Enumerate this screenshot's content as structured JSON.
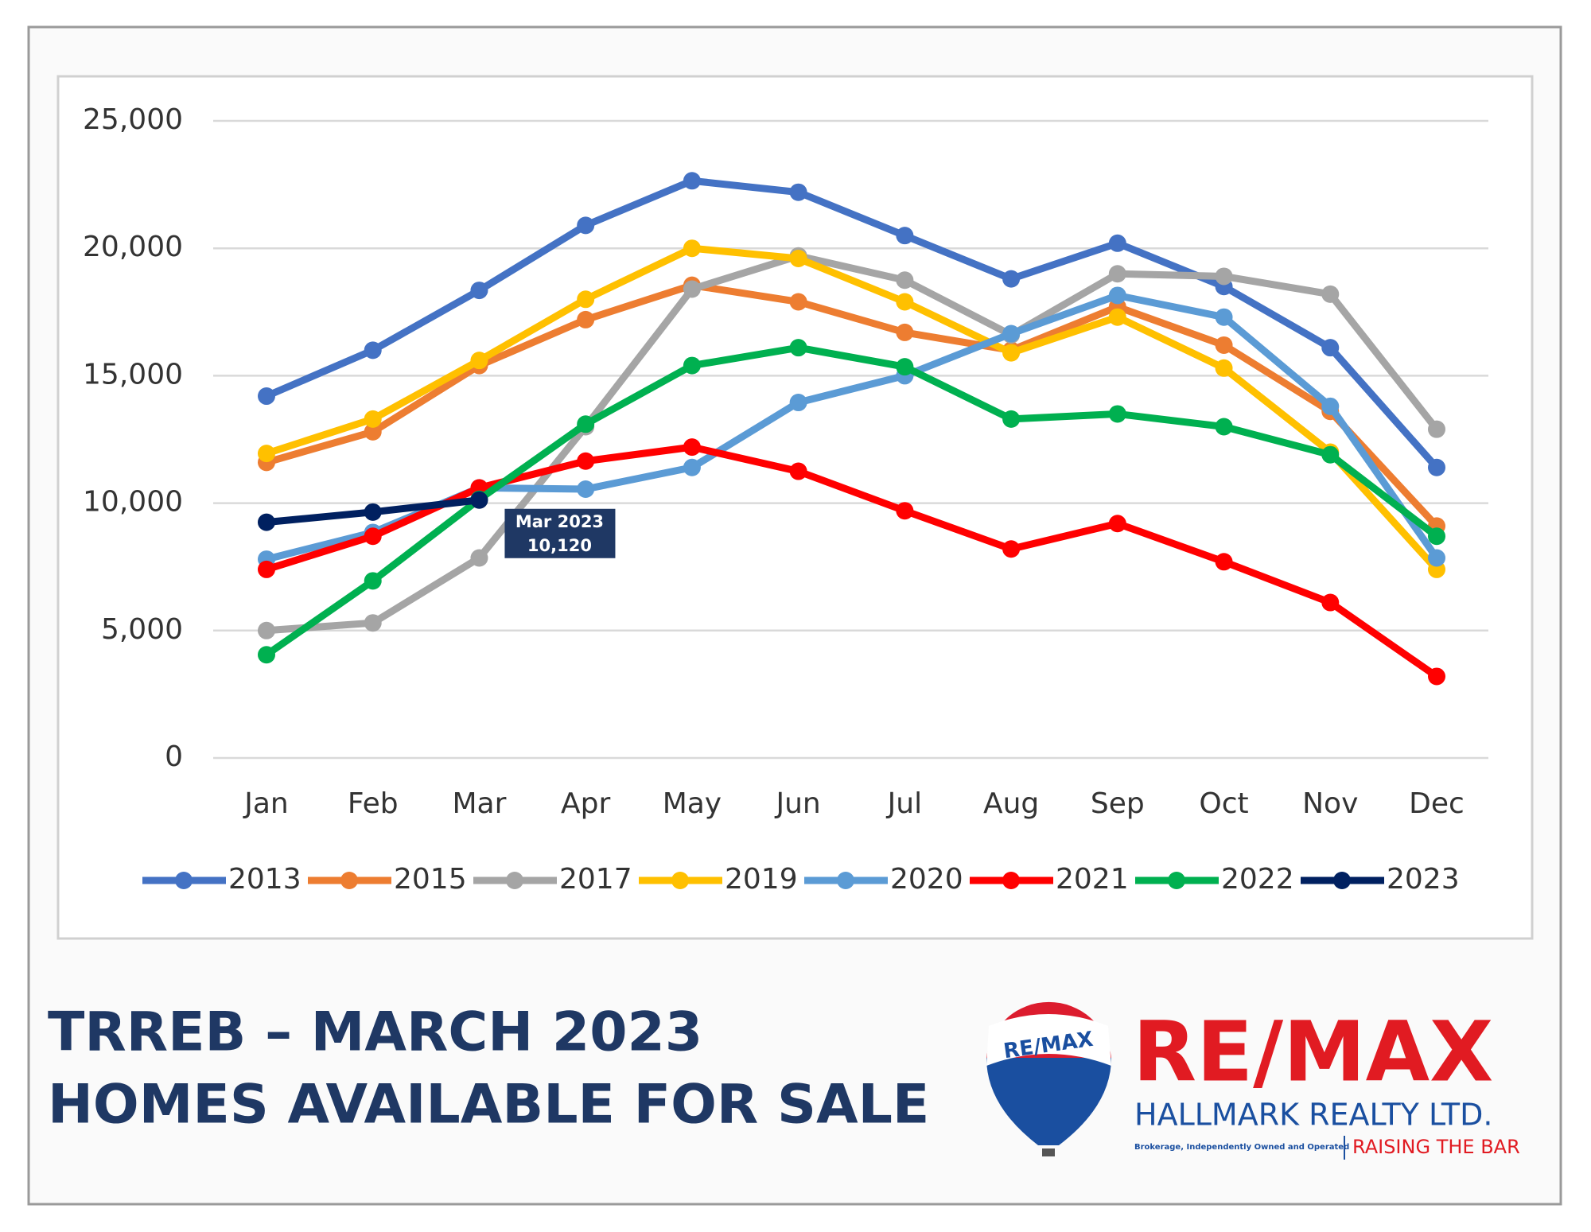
{
  "chart_data": {
    "type": "line",
    "categories": [
      "Jan",
      "Feb",
      "Mar",
      "Apr",
      "May",
      "Jun",
      "Jul",
      "Aug",
      "Sep",
      "Oct",
      "Nov",
      "Dec"
    ],
    "series": [
      {
        "name": "2013",
        "color": "#4472c4",
        "values": [
          14200,
          16000,
          18350,
          20900,
          22650,
          22200,
          20500,
          18800,
          20200,
          18500,
          16100,
          11400
        ]
      },
      {
        "name": "2015",
        "color": "#ed7d31",
        "values": [
          11600,
          12800,
          15400,
          17200,
          18550,
          17900,
          16700,
          16000,
          17700,
          16200,
          13600,
          9100
        ]
      },
      {
        "name": "2017",
        "color": "#a5a5a5",
        "values": [
          5000,
          5300,
          7850,
          13000,
          18400,
          19700,
          18750,
          16600,
          19000,
          18900,
          18200,
          12900
        ]
      },
      {
        "name": "2019",
        "color": "#ffc000",
        "values": [
          11950,
          13300,
          15600,
          18000,
          20000,
          19600,
          17900,
          15900,
          17300,
          15300,
          12000,
          7400
        ]
      },
      {
        "name": "2020",
        "color": "#5b9bd5",
        "values": [
          7800,
          8850,
          10600,
          10550,
          11400,
          13950,
          15000,
          16650,
          18150,
          17300,
          13800,
          7850
        ]
      },
      {
        "name": "2021",
        "color": "#ff0000",
        "values": [
          7400,
          8700,
          10600,
          11650,
          12200,
          11250,
          9700,
          8200,
          9200,
          7700,
          6100,
          3200
        ]
      },
      {
        "name": "2022",
        "color": "#00b050",
        "values": [
          4050,
          6950,
          10150,
          13100,
          15400,
          16100,
          15350,
          13300,
          13500,
          13000,
          11900,
          8700
        ]
      },
      {
        "name": "2023",
        "color": "#002060",
        "values": [
          9250,
          9650,
          10120,
          null,
          null,
          null,
          null,
          null,
          null,
          null,
          null,
          null
        ],
        "value_labels": [
          null,
          null,
          "10,120",
          null,
          null,
          null,
          null,
          null,
          null,
          null,
          null,
          null
        ]
      }
    ],
    "annotation": "Mar 2023",
    "ylim": [
      0,
      25000
    ],
    "yticks": [
      0,
      {
        "value": 5000,
        "label": "5,000"
      },
      {
        "value": 10000,
        "label": "10,000"
      },
      {
        "value": 15000,
        "label": "15,000"
      },
      {
        "value": 20000,
        "label": "20,000"
      },
      {
        "value": 25000,
        "label": "25,000"
      }
    ],
    "grid": true,
    "legend": "bottom"
  },
  "footer": {
    "title_line1": "TRREB – MARCH 2023",
    "title_line2": "HOMES AVAILABLE FOR SALE"
  },
  "branding": {
    "balloon": "RE/MAX",
    "brand": "RE/MAX",
    "office": "HALLMARK REALTY LTD.",
    "note": "Brokerage, Independently Owned and Operated",
    "slogan": "RAISING THE BAR"
  }
}
